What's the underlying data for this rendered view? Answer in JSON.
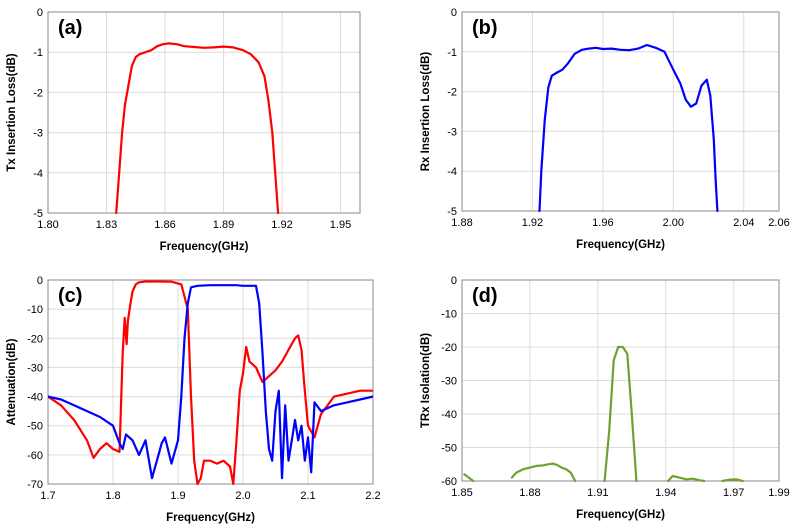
{
  "chart_data": [
    {
      "panel": "(a)",
      "type": "line",
      "xlabel": "Frequency(GHz)",
      "ylabel": "Tx Insertion Loss(dB)",
      "xlim": [
        1.8,
        1.96
      ],
      "ylim": [
        -5,
        0
      ],
      "xticks": [
        "1.80",
        "1.83",
        "1.86",
        "1.89",
        "1.92",
        "1.95"
      ],
      "yticks": [
        "0",
        "-1",
        "-2",
        "-3",
        "-4",
        "-5"
      ],
      "grid": true,
      "series": [
        {
          "color": "#ff0000",
          "x": [
            1.835,
            1.8365,
            1.838,
            1.8395,
            1.841,
            1.843,
            1.845,
            1.847,
            1.85,
            1.853,
            1.856,
            1.859,
            1.862,
            1.866,
            1.87,
            1.875,
            1.88,
            1.885,
            1.89,
            1.895,
            1.9,
            1.904,
            1.908,
            1.911,
            1.913,
            1.915,
            1.9165,
            1.918
          ],
          "y": [
            -5.0,
            -4.0,
            -3.0,
            -2.3,
            -1.9,
            -1.35,
            -1.12,
            -1.05,
            -1.0,
            -0.95,
            -0.85,
            -0.8,
            -0.78,
            -0.8,
            -0.85,
            -0.87,
            -0.89,
            -0.88,
            -0.86,
            -0.88,
            -0.95,
            -1.05,
            -1.25,
            -1.6,
            -2.2,
            -3.0,
            -4.0,
            -5.0
          ]
        }
      ]
    },
    {
      "panel": "(b)",
      "type": "line",
      "xlabel": "Frequency(GHz)",
      "ylabel": "Rx Insertion Loss(dB)",
      "xlim": [
        1.88,
        2.06
      ],
      "ylim": [
        -5,
        0
      ],
      "xticks": [
        "1.88",
        "1.92",
        "1.96",
        "2.00",
        "2.04",
        "2.06"
      ],
      "yticks": [
        "0",
        "-1",
        "-2",
        "-3",
        "-4",
        "-5"
      ],
      "grid": true,
      "series": [
        {
          "color": "#0000ff",
          "x": [
            1.924,
            1.925,
            1.927,
            1.929,
            1.931,
            1.934,
            1.937,
            1.94,
            1.944,
            1.948,
            1.952,
            1.956,
            1.96,
            1.965,
            1.97,
            1.975,
            1.98,
            1.985,
            1.99,
            1.995,
            2.0,
            2.004,
            2.007,
            2.01,
            2.013,
            2.016,
            2.019,
            2.021,
            2.023,
            2.024,
            2.025
          ],
          "y": [
            -5.0,
            -4.0,
            -2.7,
            -1.9,
            -1.6,
            -1.52,
            -1.45,
            -1.3,
            -1.05,
            -0.95,
            -0.92,
            -0.9,
            -0.93,
            -0.92,
            -0.95,
            -0.96,
            -0.92,
            -0.83,
            -0.9,
            -1.0,
            -1.45,
            -1.8,
            -2.2,
            -2.38,
            -2.3,
            -1.85,
            -1.7,
            -2.1,
            -3.2,
            -4.2,
            -5.0
          ]
        }
      ]
    },
    {
      "panel": "(c)",
      "type": "line",
      "xlabel": "Frequency(GHz)",
      "ylabel": "Attenuation(dB)",
      "xlim": [
        1.7,
        2.2
      ],
      "ylim": [
        -70,
        0
      ],
      "xticks": [
        "1.7",
        "1.8",
        "1.9",
        "2.0",
        "2.1",
        "2.2"
      ],
      "yticks": [
        "0",
        "-10",
        "-20",
        "-30",
        "-40",
        "-50",
        "-60",
        "-70"
      ],
      "grid": true,
      "series": [
        {
          "color": "#ff0000",
          "x": [
            1.7,
            1.72,
            1.74,
            1.76,
            1.77,
            1.78,
            1.79,
            1.8,
            1.81,
            1.815,
            1.818,
            1.821,
            1.823,
            1.827,
            1.83,
            1.835,
            1.84,
            1.85,
            1.87,
            1.89,
            1.905,
            1.915,
            1.92,
            1.925,
            1.93,
            1.935,
            1.94,
            1.95,
            1.96,
            1.97,
            1.98,
            1.985,
            1.99,
            1.995,
            2.0,
            2.005,
            2.01,
            2.02,
            2.03,
            2.04,
            2.05,
            2.06,
            2.07,
            2.08,
            2.085,
            2.09,
            2.095,
            2.1,
            2.11,
            2.12,
            2.14,
            2.16,
            2.18,
            2.2
          ],
          "y": [
            -40,
            -43,
            -48,
            -55,
            -61,
            -58,
            -56,
            -58,
            -59,
            -25,
            -13,
            -22,
            -14,
            -8,
            -4,
            -1.5,
            -0.8,
            -0.5,
            -0.5,
            -0.6,
            -1.5,
            -10,
            -40,
            -62,
            -70,
            -68,
            -62,
            -62,
            -63,
            -62,
            -64,
            -70,
            -55,
            -38,
            -32,
            -23,
            -28,
            -30,
            -35,
            -33,
            -31,
            -28,
            -24,
            -20,
            -19,
            -24,
            -38,
            -50,
            -54,
            -46,
            -40,
            -39,
            -38,
            -38
          ]
        },
        {
          "color": "#0000ff",
          "x": [
            1.7,
            1.72,
            1.74,
            1.76,
            1.78,
            1.8,
            1.81,
            1.815,
            1.82,
            1.83,
            1.84,
            1.85,
            1.86,
            1.87,
            1.875,
            1.88,
            1.89,
            1.9,
            1.905,
            1.91,
            1.915,
            1.92,
            1.93,
            1.95,
            1.97,
            1.99,
            2.0,
            2.01,
            2.02,
            2.025,
            2.03,
            2.035,
            2.04,
            2.045,
            2.05,
            2.055,
            2.06,
            2.065,
            2.07,
            2.075,
            2.08,
            2.085,
            2.09,
            2.095,
            2.1,
            2.105,
            2.11,
            2.12,
            2.14,
            2.16,
            2.18,
            2.2
          ],
          "y": [
            -40,
            -41,
            -43,
            -45,
            -47,
            -50,
            -56,
            -58,
            -53,
            -55,
            -60,
            -55,
            -68,
            -60,
            -56,
            -54,
            -63,
            -55,
            -40,
            -20,
            -8,
            -2.5,
            -2,
            -1.8,
            -1.8,
            -1.8,
            -2,
            -2,
            -2,
            -8,
            -25,
            -45,
            -58,
            -62,
            -45,
            -38,
            -68,
            -43,
            -62,
            -55,
            -48,
            -55,
            -50,
            -62,
            -54,
            -66,
            -42,
            -45,
            -43,
            -42,
            -41,
            -40
          ]
        }
      ]
    },
    {
      "panel": "(d)",
      "type": "line",
      "xlabel": "Frequency(GHz)",
      "ylabel": "TRx Isolation(dB)",
      "xlim": [
        1.85,
        1.99
      ],
      "ylim": [
        -60,
        0
      ],
      "xticks": [
        "1.85",
        "1.88",
        "1.91",
        "1.94",
        "1.97",
        "1.99"
      ],
      "yticks": [
        "0",
        "-10",
        "-20",
        "-30",
        "-40",
        "-50",
        "-60"
      ],
      "grid": true,
      "series": [
        {
          "color": "#70a030",
          "segments": [
            {
              "x": [
                1.851,
                1.853,
                1.855
              ],
              "y": [
                -58,
                -59,
                -60
              ]
            },
            {
              "x": [
                1.872,
                1.874,
                1.877,
                1.88,
                1.883,
                1.886,
                1.888,
                1.89,
                1.892,
                1.894,
                1.896,
                1.898,
                1.9
              ],
              "y": [
                -59,
                -57.5,
                -56.5,
                -56,
                -55.5,
                -55.3,
                -55.0,
                -54.8,
                -55.2,
                -56,
                -56.5,
                -57.5,
                -60
              ]
            },
            {
              "x": [
                1.913,
                1.915,
                1.917,
                1.919,
                1.921,
                1.923,
                1.925,
                1.927
              ],
              "y": [
                -60,
                -45,
                -24,
                -20,
                -20,
                -22,
                -40,
                -60
              ]
            },
            {
              "x": [
                1.941,
                1.943,
                1.946,
                1.949,
                1.952,
                1.955,
                1.957
              ],
              "y": [
                -60,
                -58.5,
                -59,
                -59.5,
                -59.3,
                -59.8,
                -60
              ]
            },
            {
              "x": [
                1.965,
                1.968,
                1.971,
                1.974
              ],
              "y": [
                -60,
                -59.6,
                -59.5,
                -60
              ]
            }
          ]
        }
      ]
    }
  ]
}
